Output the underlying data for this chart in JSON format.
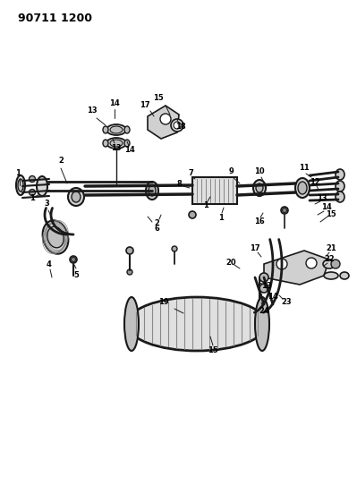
{
  "title": "90711 1200",
  "bg_color": "#ffffff",
  "line_color": "#1a1a1a",
  "text_color": "#000000",
  "fig_width": 3.99,
  "fig_height": 5.33,
  "dpi": 100
}
